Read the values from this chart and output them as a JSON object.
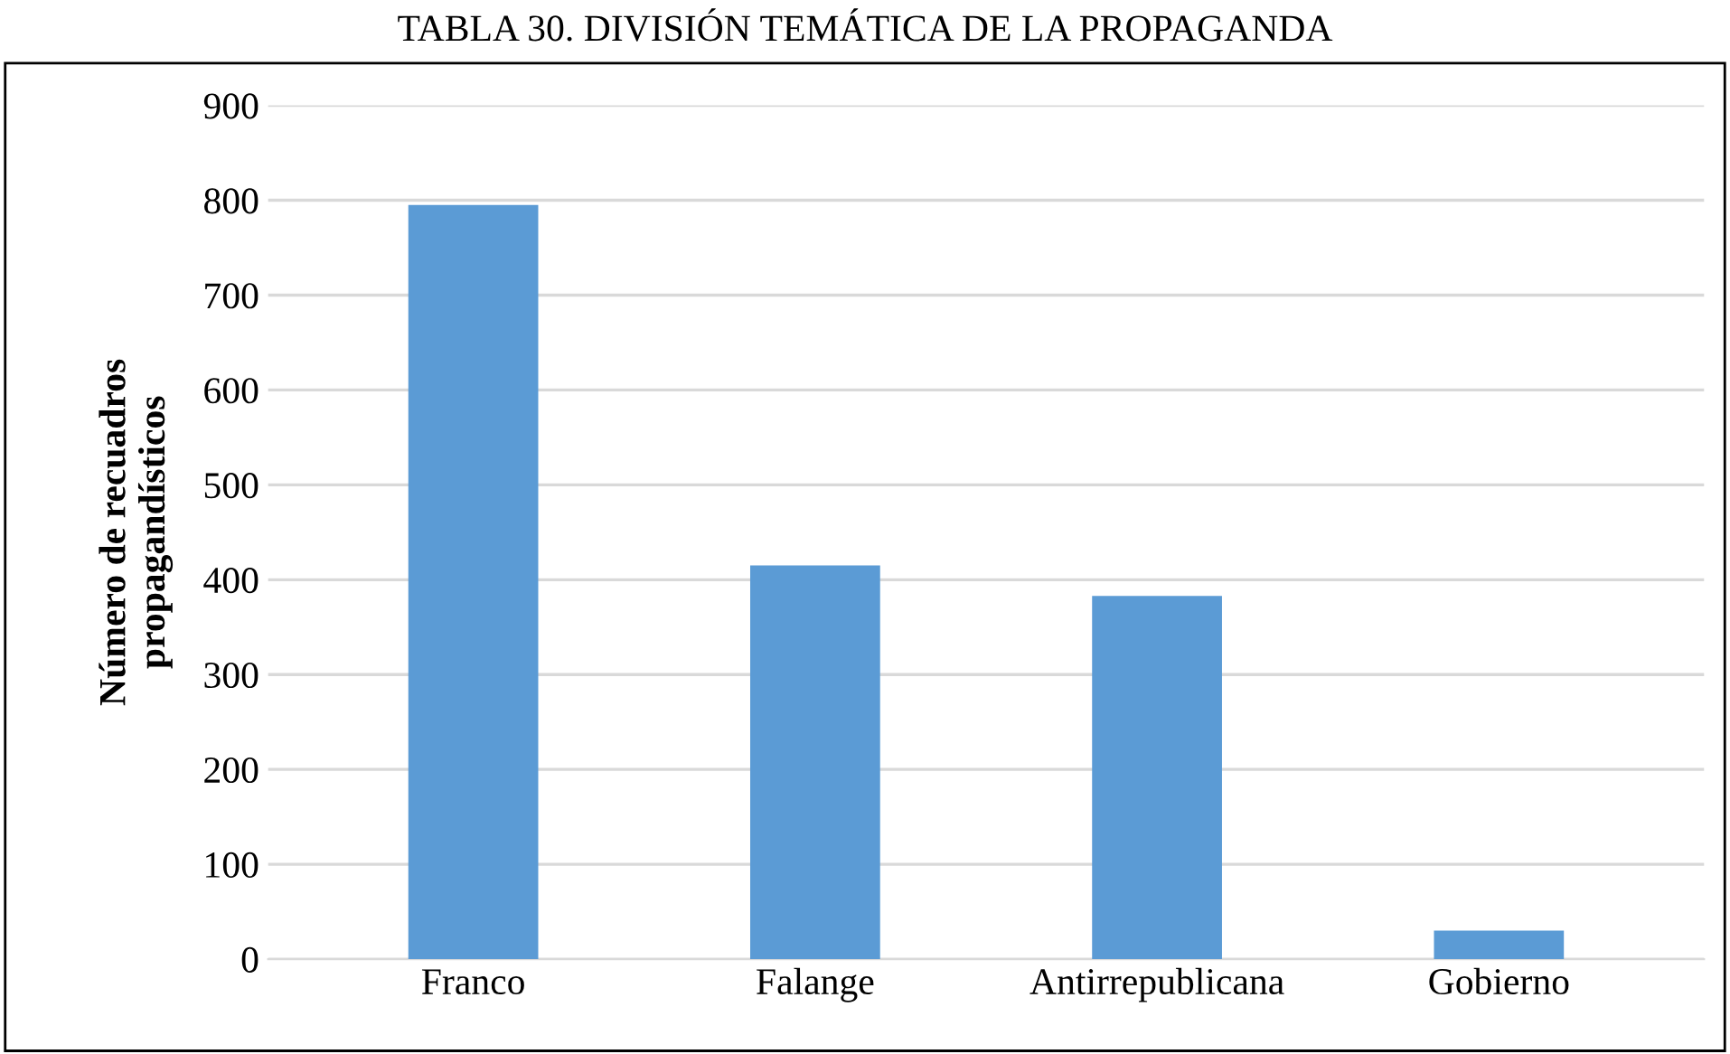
{
  "chart_data": {
    "type": "bar",
    "title": "TABLA 30. DIVISIÓN TEMÁTICA DE LA PROPAGANDA",
    "ylabel": "Número de recuadros\npropagandísticos",
    "categories": [
      "Franco",
      "Falange",
      "Antirrepublicana",
      "Gobierno"
    ],
    "values": [
      795,
      415,
      383,
      30
    ],
    "color": "#5b9bd5",
    "ylim": [
      0,
      900
    ],
    "yticks": [
      0,
      100,
      200,
      300,
      400,
      500,
      600,
      700,
      800,
      900
    ],
    "grid": "y"
  }
}
